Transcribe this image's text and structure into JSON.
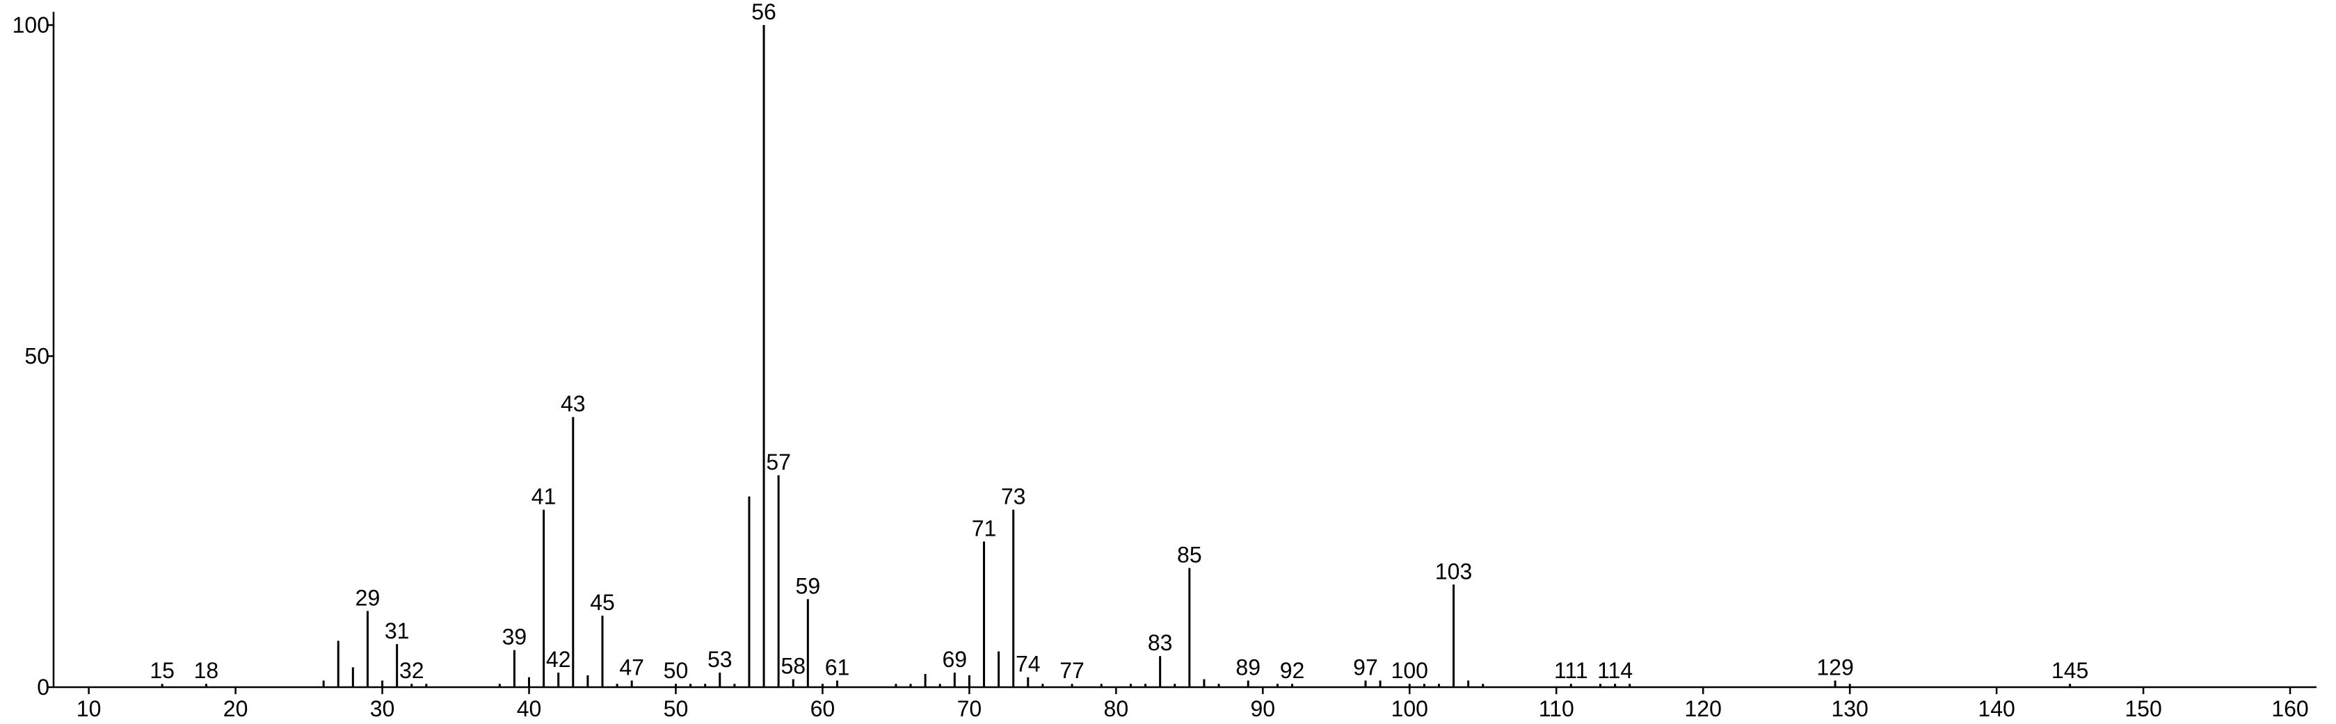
{
  "chart_data": {
    "type": "bar",
    "color": "#000000",
    "x": [
      15,
      18,
      26,
      27,
      28,
      29,
      30,
      31,
      32,
      33,
      38,
      39,
      40,
      41,
      42,
      43,
      44,
      45,
      46,
      47,
      50,
      51,
      52,
      53,
      54,
      55,
      56,
      57,
      58,
      59,
      60,
      61,
      65,
      66,
      67,
      68,
      69,
      70,
      71,
      72,
      73,
      74,
      75,
      77,
      79,
      81,
      82,
      83,
      84,
      85,
      86,
      87,
      89,
      91,
      92,
      97,
      98,
      100,
      101,
      102,
      103,
      104,
      105,
      111,
      113,
      114,
      115,
      129,
      130,
      145
    ],
    "values": [
      0.5,
      0.5,
      1,
      7,
      3,
      11.5,
      1,
      6.5,
      0.5,
      0.5,
      0.5,
      5.6,
      1.5,
      26.8,
      2.2,
      40.8,
      1.8,
      10.8,
      0.5,
      1,
      0.5,
      0.5,
      0.5,
      2.2,
      0.5,
      28.8,
      100,
      32,
      1.2,
      13.3,
      0.5,
      1,
      0.5,
      0.5,
      2,
      0.5,
      2.2,
      1.8,
      22,
      5.4,
      26.8,
      1.5,
      0.5,
      0.5,
      0.5,
      0.5,
      0.5,
      4.7,
      0.5,
      18,
      1.2,
      0.5,
      1,
      0.5,
      0.5,
      1,
      1,
      0.5,
      0.5,
      0.5,
      15.5,
      1,
      0.5,
      0.5,
      0.5,
      0.5,
      0.5,
      1,
      0.5,
      0.5
    ],
    "labels": [
      "15",
      "18",
      null,
      null,
      null,
      "29",
      null,
      "31",
      "32",
      null,
      null,
      "39",
      null,
      "41",
      "42",
      "43",
      null,
      "45",
      null,
      "47",
      "50",
      null,
      null,
      "53",
      null,
      null,
      "56",
      "57",
      "58",
      "59",
      null,
      "61",
      null,
      null,
      null,
      null,
      "69",
      null,
      "71",
      null,
      "73",
      "74",
      null,
      "77",
      null,
      null,
      null,
      "83",
      null,
      "85",
      null,
      null,
      "89",
      null,
      "92",
      "97",
      null,
      "100",
      null,
      null,
      "103",
      null,
      null,
      "111",
      null,
      "114",
      null,
      "129",
      null,
      "145"
    ],
    "xlim": [
      7.6,
      161.8
    ],
    "ylim": [
      0,
      102
    ],
    "xticks": [
      10,
      20,
      30,
      40,
      50,
      60,
      70,
      80,
      90,
      100,
      110,
      120,
      130,
      140,
      150,
      160
    ],
    "yticks": [
      0,
      50,
      100
    ]
  }
}
